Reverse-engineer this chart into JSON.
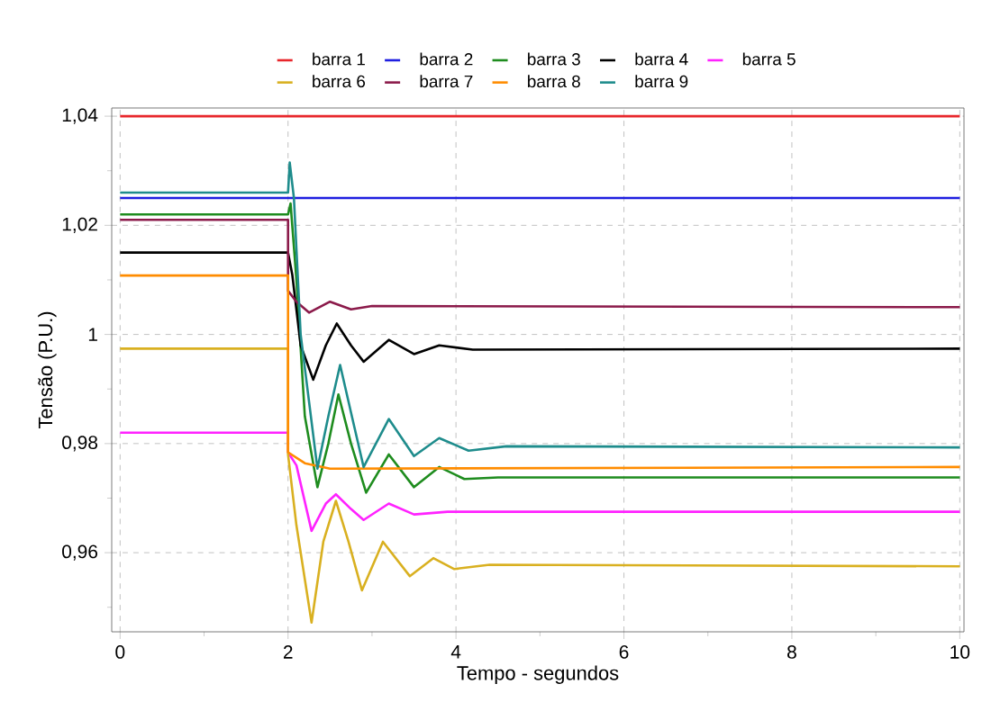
{
  "chart_data": {
    "type": "line",
    "xlabel": "Tempo - segundos",
    "ylabel": "Tensão (P.U.)",
    "xlim": [
      -0.1,
      10.05
    ],
    "ylim": [
      0.9455,
      1.0415
    ],
    "xticks": [
      0,
      2,
      4,
      6,
      8,
      10,
      {
        "value": 1,
        "label": null
      },
      {
        "value": 3,
        "label": null
      },
      {
        "value": 5,
        "label": null
      },
      {
        "value": 7,
        "label": null
      },
      {
        "value": 9,
        "label": null
      }
    ],
    "yticks": [
      {
        "value": 0.96,
        "label": "0,96"
      },
      {
        "value": 0.98,
        "label": "0,98"
      },
      {
        "value": 1,
        "label": "1"
      },
      {
        "value": 1.02,
        "label": "1,02"
      },
      {
        "value": 1.04,
        "label": "1,04"
      },
      {
        "value": 0.95,
        "label": null
      },
      {
        "value": 0.97,
        "label": null
      },
      {
        "value": 0.99,
        "label": null
      },
      {
        "value": 1.01,
        "label": null
      },
      {
        "value": 1.03,
        "label": null
      }
    ],
    "grid": true,
    "legend": "top",
    "line_style": "solid",
    "marker": "none",
    "series": [
      {
        "name": "barra 1",
        "color": "#e8262b",
        "x": [
          0,
          10
        ],
        "values": [
          1.04,
          1.04
        ]
      },
      {
        "name": "barra 2",
        "color": "#1f1fe0",
        "x": [
          0,
          10
        ],
        "values": [
          1.025,
          1.025
        ]
      },
      {
        "name": "barra 3",
        "color": "#1e8c1e",
        "x": [
          0,
          2,
          2.03,
          2.1,
          2.2,
          2.35,
          2.48,
          2.6,
          2.75,
          2.93,
          3.2,
          3.5,
          3.8,
          4.1,
          4.5,
          10
        ],
        "values": [
          1.022,
          1.022,
          1.024,
          1.01,
          0.985,
          0.972,
          0.98,
          0.989,
          0.98,
          0.971,
          0.978,
          0.972,
          0.9757,
          0.9735,
          0.9738,
          0.9738
        ]
      },
      {
        "name": "barra 4",
        "color": "#000000",
        "x": [
          0,
          2,
          2.05,
          2.15,
          2.3,
          2.45,
          2.58,
          2.75,
          2.9,
          3.2,
          3.5,
          3.8,
          4.2,
          10
        ],
        "values": [
          1.015,
          1.015,
          1.011,
          0.998,
          0.9917,
          0.998,
          1.002,
          0.998,
          0.995,
          0.999,
          0.9964,
          0.998,
          0.9972,
          0.9974
        ]
      },
      {
        "name": "barra 5",
        "color": "#ff22ff",
        "x": [
          0,
          2,
          2,
          2.1,
          2.28,
          2.45,
          2.57,
          2.75,
          2.9,
          3.2,
          3.5,
          3.9,
          10
        ],
        "values": [
          0.982,
          0.982,
          0.9784,
          0.976,
          0.964,
          0.969,
          0.9707,
          0.968,
          0.966,
          0.969,
          0.967,
          0.9675,
          0.9675
        ]
      },
      {
        "name": "barra 6",
        "color": "#d9b020",
        "x": [
          0,
          2,
          2,
          2.1,
          2.28,
          2.42,
          2.57,
          2.72,
          2.88,
          3.13,
          3.45,
          3.73,
          3.98,
          4.4,
          10
        ],
        "values": [
          0.9974,
          0.9974,
          0.978,
          0.965,
          0.9472,
          0.962,
          0.9695,
          0.962,
          0.9531,
          0.962,
          0.9557,
          0.959,
          0.957,
          0.9578,
          0.9575
        ]
      },
      {
        "name": "barra 7",
        "color": "#8b1a4a",
        "x": [
          0,
          2,
          2,
          2.1,
          2.25,
          2.5,
          2.75,
          3.0,
          10
        ],
        "values": [
          1.021,
          1.021,
          1.008,
          1.006,
          1.004,
          1.006,
          1.0046,
          1.0052,
          1.005
        ]
      },
      {
        "name": "barra 8",
        "color": "#ff8c00",
        "x": [
          0,
          2,
          2,
          2.2,
          2.5,
          10
        ],
        "values": [
          1.0108,
          1.0108,
          0.9784,
          0.9764,
          0.9754,
          0.9757
        ]
      },
      {
        "name": "barra 9",
        "color": "#1e8c8c",
        "x": [
          0,
          2,
          2.02,
          2.07,
          2.15,
          2.35,
          2.48,
          2.62,
          2.76,
          2.9,
          3.2,
          3.5,
          3.8,
          4.15,
          4.6,
          10
        ],
        "values": [
          1.026,
          1.026,
          1.0315,
          1.025,
          1.0,
          0.9754,
          0.985,
          0.9944,
          0.985,
          0.9757,
          0.9845,
          0.9777,
          0.981,
          0.9787,
          0.9795,
          0.9793
        ]
      }
    ]
  }
}
